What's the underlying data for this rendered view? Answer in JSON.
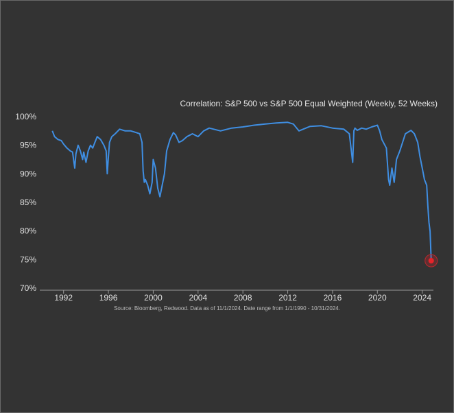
{
  "chart_data": {
    "type": "line",
    "title": "Correlation: S&P 500 vs S&P 500 Equal Weighted (Weekly, 52 Weeks)",
    "source": "Source: Bloomberg, Redwood. Data as of 11/1/2024. Date range from 1/1/1990 - 10/31/2024.",
    "xlim": [
      1990.0,
      2025.0
    ],
    "ylim": [
      70,
      100
    ],
    "x_ticks": [
      1992,
      1996,
      2000,
      2004,
      2008,
      2012,
      2016,
      2020,
      2024
    ],
    "y_ticks": [
      70,
      75,
      80,
      85,
      90,
      95,
      100
    ],
    "y_tick_labels": [
      "70%",
      "75%",
      "80%",
      "85%",
      "90%",
      "95%",
      "100%"
    ],
    "grid": false,
    "colors": {
      "line": "#3f8ee2",
      "marker": "#e8232a",
      "background": "#333333"
    },
    "series": [
      {
        "x": [
          1991.0,
          1991.2,
          1991.5,
          1991.8,
          1992.0,
          1992.3,
          1992.6,
          1992.8,
          1993.0,
          1993.1,
          1993.3,
          1993.5,
          1993.7,
          1993.8,
          1994.0,
          1994.2,
          1994.4,
          1994.6,
          1994.8,
          1995.0,
          1995.3,
          1995.6,
          1995.8,
          1995.9,
          1996.0,
          1996.1,
          1996.3,
          1996.6,
          1997.0,
          1997.5,
          1998.0,
          1998.5,
          1998.8,
          1999.0,
          1999.1,
          1999.2,
          1999.3,
          1999.5,
          1999.7,
          1999.9,
          2000.0,
          2000.2,
          2000.4,
          2000.6,
          2000.8,
          2001.0,
          2001.2,
          2001.5,
          2001.8,
          2002.0,
          2002.3,
          2002.6,
          2003.0,
          2003.5,
          2004.0,
          2004.5,
          2005.0,
          2006.0,
          2007.0,
          2008.0,
          2009.0,
          2010.0,
          2011.0,
          2012.0,
          2012.5,
          2013.0,
          2014.0,
          2015.0,
          2016.0,
          2017.0,
          2017.5,
          2017.8,
          2017.9,
          2018.0,
          2018.2,
          2018.6,
          2019.0,
          2019.5,
          2020.0,
          2020.2,
          2020.4,
          2020.8,
          2021.0,
          2021.1,
          2021.3,
          2021.5,
          2021.7,
          2022.0,
          2022.5,
          2023.0,
          2023.3,
          2023.6,
          2023.8,
          2024.0,
          2024.2,
          2024.4,
          2024.5,
          2024.6,
          2024.7,
          2024.75,
          2024.8
        ],
        "y": [
          97.5,
          96.5,
          96.0,
          95.8,
          95.2,
          94.5,
          94.0,
          93.8,
          91.0,
          93.5,
          95.0,
          94.0,
          92.5,
          93.8,
          92.0,
          94.0,
          95.0,
          94.5,
          95.5,
          96.5,
          96.0,
          95.0,
          94.0,
          90.0,
          93.0,
          95.5,
          96.5,
          97.0,
          97.8,
          97.5,
          97.5,
          97.2,
          97.0,
          95.5,
          90.5,
          88.5,
          89.0,
          88.0,
          86.5,
          88.5,
          92.5,
          91.0,
          87.5,
          86.0,
          88.0,
          90.0,
          94.0,
          96.0,
          97.2,
          96.8,
          95.5,
          95.8,
          96.5,
          97.0,
          96.5,
          97.5,
          98.0,
          97.5,
          98.0,
          98.2,
          98.5,
          98.7,
          98.9,
          99.0,
          98.7,
          97.5,
          98.3,
          98.4,
          98.0,
          97.8,
          97.0,
          92.0,
          97.5,
          98.0,
          97.6,
          98.0,
          97.8,
          98.2,
          98.5,
          97.5,
          96.0,
          94.5,
          89.0,
          88.0,
          91.0,
          88.5,
          92.5,
          94.0,
          97.0,
          97.6,
          97.0,
          95.5,
          93.0,
          91.0,
          89.0,
          88.0,
          84.5,
          81.5,
          80.0,
          77.5,
          75.0
        ]
      }
    ],
    "highlight": {
      "x": 2024.8,
      "y": 74.8
    }
  }
}
